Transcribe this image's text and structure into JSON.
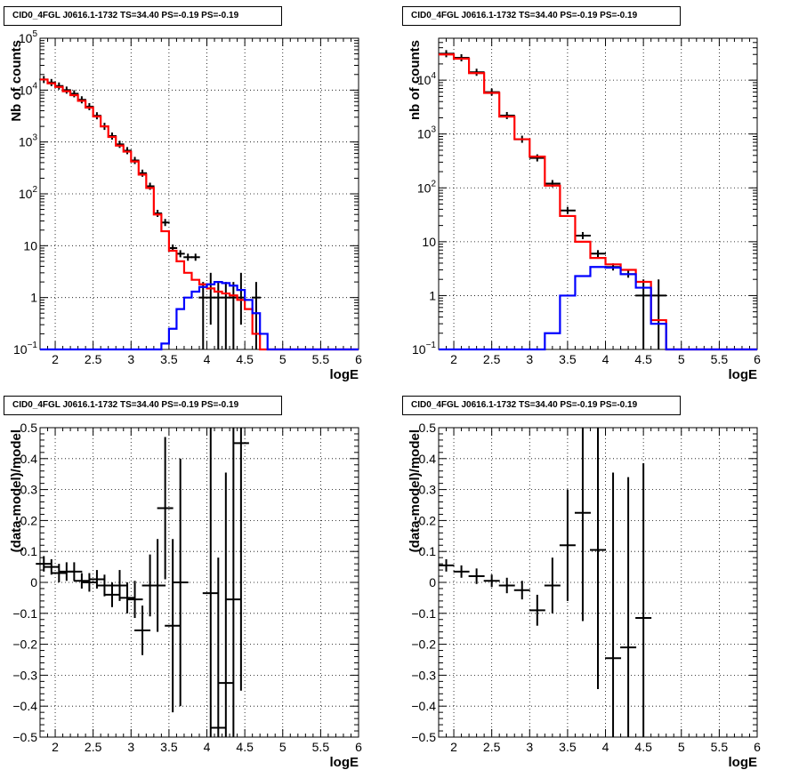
{
  "chart_data": [
    {
      "type": "line",
      "title": "CID0_4FGL J0616.1-1732 TS=34.40 PS=-0.19 PS=-0.19",
      "xlabel": "logE",
      "ylabel": "Nb of counts",
      "xlim": [
        1.8,
        6.0
      ],
      "ylim": [
        0.1,
        100000
      ],
      "y_scale": "log",
      "grid": true,
      "x_ticks": [
        "2",
        "2.5",
        "3",
        "3.5",
        "4",
        "4.5",
        "5",
        "5.5",
        "6"
      ],
      "y_ticks": [
        "10^-1",
        "1",
        "10",
        "10^2",
        "10^3",
        "10^4",
        "10^5"
      ],
      "series": [
        {
          "color": "#000000",
          "style": "errorbar",
          "x": [
            1.85,
            1.95,
            2.05,
            2.15,
            2.25,
            2.35,
            2.45,
            2.55,
            2.65,
            2.75,
            2.85,
            2.95,
            3.05,
            3.15,
            3.25,
            3.35,
            3.45,
            3.55,
            3.65,
            3.75,
            3.85,
            3.95,
            4.05,
            4.15,
            4.25,
            4.35,
            4.45,
            4.55,
            4.65
          ],
          "values": [
            16000,
            14000,
            12000,
            10000,
            8500,
            6500,
            4800,
            3200,
            2000,
            1300,
            900,
            680,
            440,
            250,
            140,
            42,
            28,
            9,
            7,
            6,
            6,
            1,
            1,
            1,
            1,
            1,
            1,
            0,
            1
          ],
          "err_low": [
            null,
            null,
            null,
            null,
            null,
            null,
            null,
            null,
            null,
            null,
            null,
            null,
            null,
            null,
            null,
            null,
            null,
            null,
            null,
            null,
            null,
            0.9,
            0.7,
            0.9,
            0.9,
            0.9,
            0.7,
            null,
            0.9
          ],
          "err_high": [
            null,
            null,
            null,
            null,
            null,
            null,
            null,
            null,
            null,
            null,
            null,
            null,
            null,
            null,
            null,
            null,
            null,
            null,
            null,
            null,
            null,
            1,
            2,
            1,
            1,
            1,
            2,
            null,
            1
          ]
        },
        {
          "color": "#ff0000",
          "style": "step",
          "edges": [
            1.8,
            1.9,
            2.0,
            2.1,
            2.2,
            2.3,
            2.4,
            2.5,
            2.6,
            2.7,
            2.8,
            2.9,
            3.0,
            3.1,
            3.2,
            3.3,
            3.4,
            3.5,
            3.6,
            3.7,
            3.8,
            3.9,
            4.0,
            4.1,
            4.2,
            4.3,
            4.4,
            4.5,
            4.6,
            4.7,
            4.8,
            4.9,
            5.0,
            5.1,
            5.2,
            5.3,
            5.4,
            5.5,
            5.6,
            5.7,
            5.8,
            5.9,
            6.0
          ],
          "values": [
            16000,
            13500,
            11500,
            9500,
            8000,
            6200,
            4600,
            3100,
            2000,
            1250,
            850,
            650,
            420,
            235,
            130,
            40,
            19,
            8,
            5,
            3,
            2.2,
            1.8,
            1.5,
            1.3,
            1.2,
            1.1,
            0.9,
            0.6,
            0.2,
            0.1,
            0.1,
            0.1,
            0.1,
            0.1,
            0.1,
            0.1,
            0.1,
            0.1,
            0.1,
            0.1,
            0.1,
            0.1
          ]
        },
        {
          "color": "#0000ff",
          "style": "step",
          "edges": [
            1.8,
            1.9,
            2.0,
            2.1,
            2.2,
            2.3,
            2.4,
            2.5,
            2.6,
            2.7,
            2.8,
            2.9,
            3.0,
            3.1,
            3.2,
            3.3,
            3.4,
            3.5,
            3.6,
            3.7,
            3.8,
            3.9,
            4.0,
            4.1,
            4.2,
            4.3,
            4.4,
            4.5,
            4.6,
            4.7,
            4.8,
            4.9,
            5.0,
            5.1,
            5.2,
            5.3,
            5.4,
            5.5,
            5.6,
            5.7,
            5.8,
            5.9,
            6.0
          ],
          "values": [
            0.1,
            0.1,
            0.1,
            0.1,
            0.1,
            0.1,
            0.1,
            0.1,
            0.1,
            0.1,
            0.1,
            0.1,
            0.1,
            0.1,
            0.1,
            0.1,
            0.13,
            0.25,
            0.6,
            1.0,
            1.3,
            1.6,
            1.8,
            2.0,
            1.9,
            1.7,
            1.4,
            0.9,
            0.5,
            0.2,
            0.1,
            0.1,
            0.1,
            0.1,
            0.1,
            0.1,
            0.1,
            0.1,
            0.1,
            0.1,
            0.1,
            0.1
          ]
        }
      ]
    },
    {
      "type": "line",
      "title": "CID0_4FGL J0616.1-1732 TS=34.40 PS=-0.19 PS=-0.19",
      "xlabel": "logE",
      "ylabel": "nb of counts",
      "xlim": [
        1.8,
        6.0
      ],
      "ylim": [
        0.1,
        60000
      ],
      "y_scale": "log",
      "grid": true,
      "x_ticks": [
        "2",
        "2.5",
        "3",
        "3.5",
        "4",
        "4.5",
        "5",
        "5.5",
        "6"
      ],
      "y_ticks": [
        "10^-1",
        "1",
        "10",
        "10^2",
        "10^3",
        "10^4"
      ],
      "series": [
        {
          "color": "#000000",
          "style": "errorbar",
          "x": [
            1.9,
            2.1,
            2.3,
            2.5,
            2.7,
            2.9,
            3.1,
            3.3,
            3.5,
            3.7,
            3.9,
            4.1,
            4.3,
            4.5,
            4.7
          ],
          "values": [
            31000,
            26000,
            14000,
            6000,
            2200,
            800,
            360,
            120,
            38,
            13,
            6,
            3.4,
            2.5,
            1,
            1
          ],
          "err_low": [
            null,
            null,
            null,
            null,
            null,
            null,
            null,
            null,
            null,
            null,
            null,
            null,
            null,
            0.9,
            0.9
          ],
          "err_high": [
            null,
            null,
            null,
            null,
            null,
            null,
            null,
            null,
            null,
            null,
            null,
            null,
            null,
            1,
            1
          ]
        },
        {
          "color": "#ff0000",
          "style": "step",
          "edges": [
            1.8,
            2.0,
            2.2,
            2.4,
            2.6,
            2.8,
            3.0,
            3.2,
            3.4,
            3.6,
            3.8,
            4.0,
            4.2,
            4.4,
            4.6,
            4.8,
            5.0,
            5.2,
            5.4,
            5.6,
            5.8,
            6.0
          ],
          "values": [
            30000,
            25000,
            13500,
            5800,
            2100,
            800,
            380,
            110,
            30,
            10,
            5,
            3.8,
            3.0,
            1.8,
            0.35,
            0.1,
            0.1,
            0.1,
            0.1,
            0.1,
            0.1
          ]
        },
        {
          "color": "#0000ff",
          "style": "step",
          "edges": [
            1.8,
            2.0,
            2.2,
            2.4,
            2.6,
            2.8,
            3.0,
            3.2,
            3.4,
            3.6,
            3.8,
            4.0,
            4.2,
            4.4,
            4.6,
            4.8,
            5.0,
            5.2,
            5.4,
            5.6,
            5.8,
            6.0
          ],
          "values": [
            0.1,
            0.1,
            0.1,
            0.1,
            0.1,
            0.1,
            0.1,
            0.2,
            1.0,
            2.3,
            3.4,
            3.3,
            2.5,
            1.4,
            0.3,
            0.1,
            0.1,
            0.1,
            0.1,
            0.1,
            0.1
          ]
        }
      ]
    },
    {
      "type": "scatter",
      "title": "CID0_4FGL J0616.1-1732 TS=34.40 PS=-0.19 PS=-0.19",
      "xlabel": "logE",
      "ylabel": "(data-model)/model",
      "xlim": [
        1.8,
        6.0
      ],
      "ylim": [
        -0.5,
        0.5
      ],
      "grid": true,
      "x_ticks": [
        "2",
        "2.5",
        "3",
        "3.5",
        "4",
        "4.5",
        "5",
        "5.5",
        "6"
      ],
      "y_ticks": [
        "-0.5",
        "-0.4",
        "-0.3",
        "-0.2",
        "-0.1",
        "0",
        "0.1",
        "0.2",
        "0.3",
        "0.4",
        "0.5"
      ],
      "series": [
        {
          "color": "#000000",
          "style": "errorbar",
          "x": [
            1.85,
            1.95,
            2.05,
            2.15,
            2.25,
            2.35,
            2.45,
            2.55,
            2.65,
            2.75,
            2.85,
            2.95,
            3.05,
            3.15,
            3.25,
            3.35,
            3.45,
            3.55,
            3.65,
            4.05,
            4.15,
            4.25,
            4.35,
            4.45
          ],
          "values": [
            0.06,
            0.05,
            0.03,
            0.035,
            0.035,
            0.005,
            0.0,
            0.01,
            -0.01,
            -0.04,
            -0.01,
            -0.05,
            -0.055,
            -0.155,
            -0.01,
            -0.01,
            0.24,
            -0.14,
            0.0,
            -0.035,
            -0.47,
            -0.325,
            -0.055,
            0.45
          ],
          "err": [
            0.025,
            0.025,
            0.03,
            0.03,
            0.03,
            0.025,
            0.03,
            0.03,
            0.035,
            0.04,
            0.05,
            0.05,
            0.06,
            0.08,
            0.1,
            0.15,
            0.23,
            0.28,
            0.4,
            0.55,
            0.55,
            0.68,
            0.6,
            0.8
          ]
        }
      ]
    },
    {
      "type": "scatter",
      "title": "CID0_4FGL J0616.1-1732 TS=34.40 PS=-0.19 PS=-0.19",
      "xlabel": "logE",
      "ylabel": "(data-model)/model",
      "xlim": [
        1.8,
        6.0
      ],
      "ylim": [
        -0.5,
        0.5
      ],
      "grid": true,
      "x_ticks": [
        "2",
        "2.5",
        "3",
        "3.5",
        "4",
        "4.5",
        "5",
        "5.5",
        "6"
      ],
      "y_ticks": [
        "-0.5",
        "-0.4",
        "-0.3",
        "-0.2",
        "-0.1",
        "0",
        "0.1",
        "0.2",
        "0.3",
        "0.4",
        "0.5"
      ],
      "series": [
        {
          "color": "#000000",
          "style": "errorbar",
          "x": [
            1.9,
            2.1,
            2.3,
            2.5,
            2.7,
            2.9,
            3.1,
            3.3,
            3.5,
            3.7,
            3.9,
            4.1,
            4.3,
            4.5
          ],
          "values": [
            0.055,
            0.035,
            0.02,
            0.005,
            -0.01,
            -0.025,
            -0.09,
            -0.01,
            0.12,
            0.225,
            0.105,
            -0.245,
            -0.21,
            -0.115
          ],
          "err": [
            0.02,
            0.02,
            0.025,
            0.02,
            0.025,
            0.03,
            0.05,
            0.09,
            0.18,
            0.35,
            0.45,
            0.6,
            0.55,
            0.5
          ]
        }
      ]
    }
  ]
}
